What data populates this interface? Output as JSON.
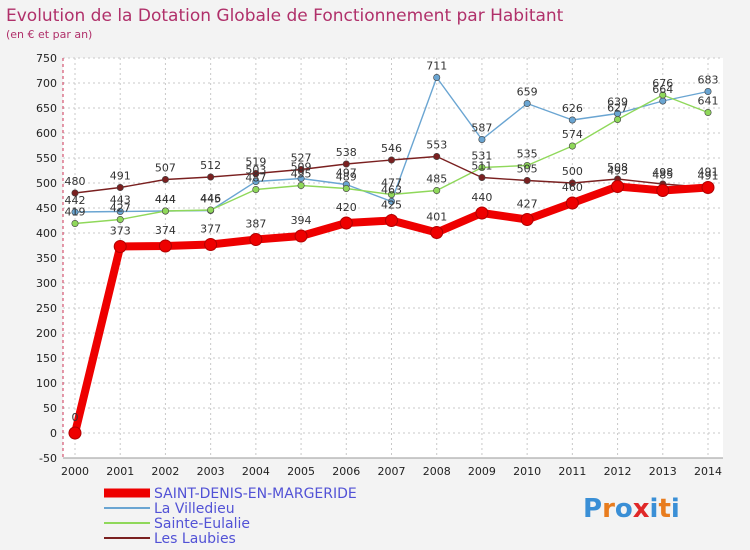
{
  "header": {
    "title": "Evolution de la Dotation Globale de Fonctionnement par Habitant",
    "subtitle": "(en € et par an)"
  },
  "brand": {
    "logo": "Proxiti",
    "letter_colors": [
      "#3a8fd6",
      "#e87c1e",
      "#3a8fd6",
      "#e02828",
      "#3a8fd6",
      "#e87c1e",
      "#3a8fd6"
    ]
  },
  "chart_data": {
    "type": "line",
    "title": "Evolution de la Dotation Globale de Fonctionnement par Habitant",
    "subtitle": "(en € et par an)",
    "xlabel": "",
    "ylabel": "",
    "x": [
      "2000",
      "2001",
      "2002",
      "2003",
      "2004",
      "2005",
      "2006",
      "2007",
      "2008",
      "2009",
      "2010",
      "2011",
      "2012",
      "2013",
      "2014"
    ],
    "ylim": [
      -50,
      750
    ],
    "yticks": [
      -50,
      0,
      50,
      100,
      150,
      200,
      250,
      300,
      350,
      400,
      450,
      500,
      550,
      600,
      650,
      700,
      750
    ],
    "grid": true,
    "legend_position": "bottom-left",
    "series": [
      {
        "name": "SAINT-DENIS-EN-MARGERIDE",
        "color": "#ee0000",
        "values": [
          0,
          373,
          374,
          377,
          387,
          394,
          420,
          425,
          401,
          440,
          427,
          460,
          493,
          485,
          491
        ],
        "labels": [
          "0",
          "373",
          "374",
          "377",
          "387",
          "394",
          "420",
          "425",
          "401",
          "440",
          "427",
          "460",
          "493",
          "485",
          "491"
        ]
      },
      {
        "name": "La Villedieu",
        "color": "#6aa5d2",
        "values": [
          442,
          443,
          444,
          445,
          503,
          509,
          497,
          463,
          711,
          587,
          659,
          626,
          639,
          664,
          683
        ],
        "labels": [
          "442",
          "443",
          "444",
          "445",
          "503",
          "509",
          "497",
          "463",
          "711",
          "587",
          "659",
          "626",
          "639",
          "664",
          "683"
        ]
      },
      {
        "name": "Sainte-Eulalie",
        "color": "#8fd85a",
        "values": [
          419,
          427,
          444,
          446,
          487,
          495,
          489,
          477,
          485,
          531,
          535,
          574,
          627,
          676,
          641
        ],
        "labels": [
          "419",
          "427",
          "444",
          "446",
          "487",
          "495",
          "489",
          "477",
          "485",
          "531",
          "535",
          "574",
          "627",
          "676",
          "641"
        ]
      },
      {
        "name": "Les Laubies",
        "color": "#7a2020",
        "values": [
          480,
          491,
          507,
          512,
          519,
          527,
          538,
          546,
          553,
          511,
          505,
          500,
          508,
          498,
          491
        ],
        "labels": [
          "480",
          "491",
          "507",
          "512",
          "519",
          "527",
          "538",
          "546",
          "553",
          "511",
          "505",
          "500",
          "508",
          "498",
          "491"
        ]
      }
    ]
  }
}
